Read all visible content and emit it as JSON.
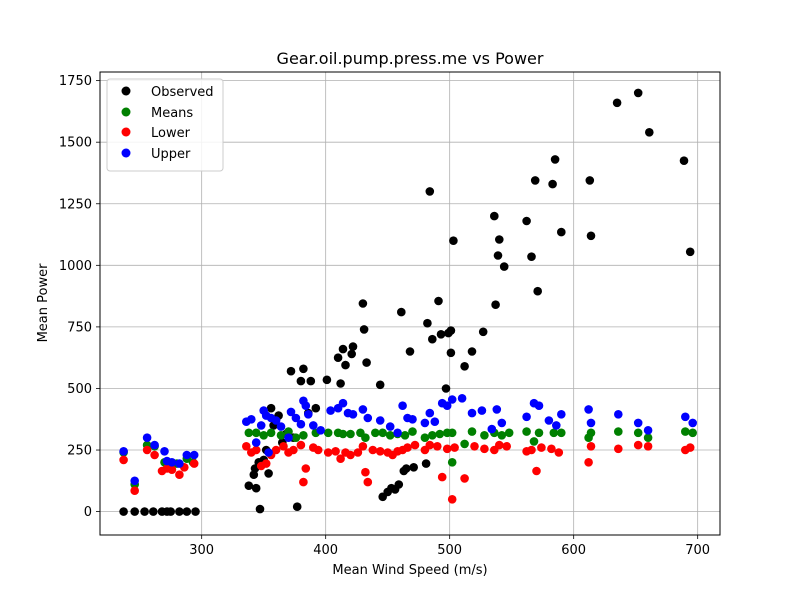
{
  "chart_data": {
    "type": "scatter",
    "title": "Gear.oil.pump.press.me vs Power",
    "xlabel": "Mean Wind Speed (m/s)",
    "ylabel": "Mean Power",
    "xlim": [
      218,
      718
    ],
    "ylim": [
      -95,
      1785
    ],
    "xticks": [
      300,
      400,
      500,
      600,
      700
    ],
    "yticks": [
      0,
      250,
      500,
      750,
      1000,
      1250,
      1500,
      1750
    ],
    "grid": true,
    "legend_position": "top-left",
    "series": [
      {
        "name": "Observed",
        "color": "#000000",
        "points": [
          [
            237,
            0
          ],
          [
            246,
            0
          ],
          [
            254,
            0
          ],
          [
            261,
            0
          ],
          [
            268,
            0
          ],
          [
            272,
            0
          ],
          [
            275,
            0
          ],
          [
            282,
            0
          ],
          [
            288,
            0
          ],
          [
            295,
            0
          ],
          [
            338,
            105
          ],
          [
            342,
            150
          ],
          [
            343,
            175
          ],
          [
            344,
            95
          ],
          [
            346,
            200
          ],
          [
            347,
            10
          ],
          [
            350,
            210
          ],
          [
            352,
            250
          ],
          [
            354,
            155
          ],
          [
            356,
            420
          ],
          [
            358,
            350
          ],
          [
            362,
            390
          ],
          [
            365,
            280
          ],
          [
            368,
            315
          ],
          [
            372,
            570
          ],
          [
            374,
            300
          ],
          [
            377,
            20
          ],
          [
            380,
            530
          ],
          [
            382,
            580
          ],
          [
            386,
            400
          ],
          [
            388,
            530
          ],
          [
            392,
            420
          ],
          [
            401,
            535
          ],
          [
            410,
            625
          ],
          [
            412,
            520
          ],
          [
            414,
            660
          ],
          [
            416,
            595
          ],
          [
            421,
            640
          ],
          [
            422,
            670
          ],
          [
            430,
            845
          ],
          [
            431,
            740
          ],
          [
            433,
            605
          ],
          [
            444,
            515
          ],
          [
            446,
            60
          ],
          [
            450,
            80
          ],
          [
            453,
            95
          ],
          [
            456,
            90
          ],
          [
            459,
            110
          ],
          [
            461,
            810
          ],
          [
            463,
            165
          ],
          [
            465,
            175
          ],
          [
            468,
            650
          ],
          [
            471,
            180
          ],
          [
            481,
            195
          ],
          [
            482,
            765
          ],
          [
            484,
            1300
          ],
          [
            486,
            700
          ],
          [
            491,
            855
          ],
          [
            493,
            720
          ],
          [
            497,
            500
          ],
          [
            499,
            725
          ],
          [
            501,
            735
          ],
          [
            501,
            645
          ],
          [
            503,
            1100
          ],
          [
            512,
            590
          ],
          [
            518,
            650
          ],
          [
            527,
            730
          ],
          [
            536,
            1200
          ],
          [
            537,
            840
          ],
          [
            539,
            1040
          ],
          [
            540,
            1105
          ],
          [
            544,
            995
          ],
          [
            562,
            1180
          ],
          [
            566,
            1035
          ],
          [
            569,
            1345
          ],
          [
            571,
            895
          ],
          [
            583,
            1330
          ],
          [
            585,
            1430
          ],
          [
            590,
            1135
          ],
          [
            613,
            1345
          ],
          [
            614,
            1120
          ],
          [
            635,
            1660
          ],
          [
            652,
            1700
          ],
          [
            661,
            1540
          ],
          [
            689,
            1425
          ],
          [
            694,
            1055
          ]
        ]
      },
      {
        "name": "Means",
        "color": "#008000",
        "points": [
          [
            237,
            240
          ],
          [
            246,
            110
          ],
          [
            256,
            270
          ],
          [
            262,
            265
          ],
          [
            270,
            200
          ],
          [
            274,
            185
          ],
          [
            280,
            195
          ],
          [
            288,
            215
          ],
          [
            293,
            200
          ],
          [
            338,
            320
          ],
          [
            344,
            320
          ],
          [
            350,
            310
          ],
          [
            356,
            320
          ],
          [
            364,
            310
          ],
          [
            370,
            325
          ],
          [
            376,
            300
          ],
          [
            382,
            310
          ],
          [
            392,
            320
          ],
          [
            402,
            320
          ],
          [
            410,
            320
          ],
          [
            414,
            315
          ],
          [
            420,
            315
          ],
          [
            428,
            320
          ],
          [
            432,
            300
          ],
          [
            440,
            320
          ],
          [
            446,
            320
          ],
          [
            452,
            310
          ],
          [
            458,
            315
          ],
          [
            464,
            310
          ],
          [
            470,
            325
          ],
          [
            480,
            300
          ],
          [
            486,
            310
          ],
          [
            492,
            315
          ],
          [
            498,
            320
          ],
          [
            502,
            320
          ],
          [
            502,
            200
          ],
          [
            512,
            275
          ],
          [
            518,
            325
          ],
          [
            528,
            310
          ],
          [
            536,
            320
          ],
          [
            542,
            310
          ],
          [
            548,
            320
          ],
          [
            562,
            325
          ],
          [
            568,
            285
          ],
          [
            572,
            320
          ],
          [
            584,
            320
          ],
          [
            590,
            320
          ],
          [
            612,
            300
          ],
          [
            614,
            320
          ],
          [
            636,
            325
          ],
          [
            652,
            320
          ],
          [
            660,
            300
          ],
          [
            690,
            325
          ],
          [
            696,
            320
          ]
        ]
      },
      {
        "name": "Lower",
        "color": "#ff0000",
        "points": [
          [
            237,
            210
          ],
          [
            246,
            85
          ],
          [
            256,
            250
          ],
          [
            262,
            230
          ],
          [
            268,
            165
          ],
          [
            272,
            175
          ],
          [
            276,
            170
          ],
          [
            282,
            150
          ],
          [
            286,
            180
          ],
          [
            294,
            195
          ],
          [
            336,
            265
          ],
          [
            340,
            240
          ],
          [
            344,
            250
          ],
          [
            348,
            185
          ],
          [
            352,
            195
          ],
          [
            356,
            230
          ],
          [
            360,
            250
          ],
          [
            366,
            265
          ],
          [
            370,
            240
          ],
          [
            374,
            250
          ],
          [
            380,
            270
          ],
          [
            382,
            120
          ],
          [
            384,
            175
          ],
          [
            390,
            260
          ],
          [
            394,
            250
          ],
          [
            402,
            240
          ],
          [
            408,
            245
          ],
          [
            412,
            215
          ],
          [
            416,
            240
          ],
          [
            420,
            230
          ],
          [
            426,
            240
          ],
          [
            430,
            265
          ],
          [
            432,
            160
          ],
          [
            434,
            120
          ],
          [
            438,
            250
          ],
          [
            444,
            245
          ],
          [
            450,
            240
          ],
          [
            454,
            230
          ],
          [
            458,
            245
          ],
          [
            462,
            250
          ],
          [
            466,
            260
          ],
          [
            472,
            270
          ],
          [
            480,
            250
          ],
          [
            484,
            270
          ],
          [
            490,
            265
          ],
          [
            494,
            140
          ],
          [
            498,
            255
          ],
          [
            502,
            50
          ],
          [
            504,
            260
          ],
          [
            512,
            135
          ],
          [
            520,
            265
          ],
          [
            528,
            255
          ],
          [
            536,
            250
          ],
          [
            540,
            270
          ],
          [
            546,
            265
          ],
          [
            562,
            245
          ],
          [
            566,
            250
          ],
          [
            570,
            165
          ],
          [
            574,
            260
          ],
          [
            582,
            255
          ],
          [
            588,
            240
          ],
          [
            612,
            200
          ],
          [
            614,
            265
          ],
          [
            636,
            255
          ],
          [
            652,
            270
          ],
          [
            660,
            265
          ],
          [
            690,
            250
          ],
          [
            694,
            260
          ]
        ]
      },
      {
        "name": "Upper",
        "color": "#0000ff",
        "points": [
          [
            237,
            245
          ],
          [
            246,
            125
          ],
          [
            256,
            300
          ],
          [
            262,
            270
          ],
          [
            270,
            245
          ],
          [
            272,
            205
          ],
          [
            276,
            200
          ],
          [
            282,
            195
          ],
          [
            288,
            230
          ],
          [
            294,
            230
          ],
          [
            336,
            365
          ],
          [
            340,
            375
          ],
          [
            344,
            280
          ],
          [
            348,
            350
          ],
          [
            350,
            410
          ],
          [
            352,
            390
          ],
          [
            354,
            240
          ],
          [
            356,
            380
          ],
          [
            360,
            370
          ],
          [
            364,
            345
          ],
          [
            370,
            300
          ],
          [
            372,
            405
          ],
          [
            376,
            380
          ],
          [
            380,
            355
          ],
          [
            382,
            450
          ],
          [
            384,
            430
          ],
          [
            386,
            395
          ],
          [
            390,
            350
          ],
          [
            396,
            330
          ],
          [
            404,
            410
          ],
          [
            410,
            420
          ],
          [
            414,
            440
          ],
          [
            418,
            400
          ],
          [
            422,
            395
          ],
          [
            430,
            415
          ],
          [
            434,
            380
          ],
          [
            444,
            370
          ],
          [
            452,
            345
          ],
          [
            458,
            320
          ],
          [
            462,
            430
          ],
          [
            466,
            380
          ],
          [
            470,
            375
          ],
          [
            480,
            360
          ],
          [
            484,
            400
          ],
          [
            488,
            365
          ],
          [
            494,
            440
          ],
          [
            498,
            430
          ],
          [
            502,
            455
          ],
          [
            510,
            460
          ],
          [
            518,
            400
          ],
          [
            526,
            410
          ],
          [
            534,
            335
          ],
          [
            538,
            415
          ],
          [
            542,
            360
          ],
          [
            562,
            385
          ],
          [
            568,
            440
          ],
          [
            572,
            430
          ],
          [
            580,
            370
          ],
          [
            586,
            350
          ],
          [
            590,
            395
          ],
          [
            612,
            415
          ],
          [
            614,
            360
          ],
          [
            636,
            395
          ],
          [
            652,
            360
          ],
          [
            660,
            330
          ],
          [
            690,
            385
          ],
          [
            696,
            360
          ]
        ]
      }
    ]
  }
}
